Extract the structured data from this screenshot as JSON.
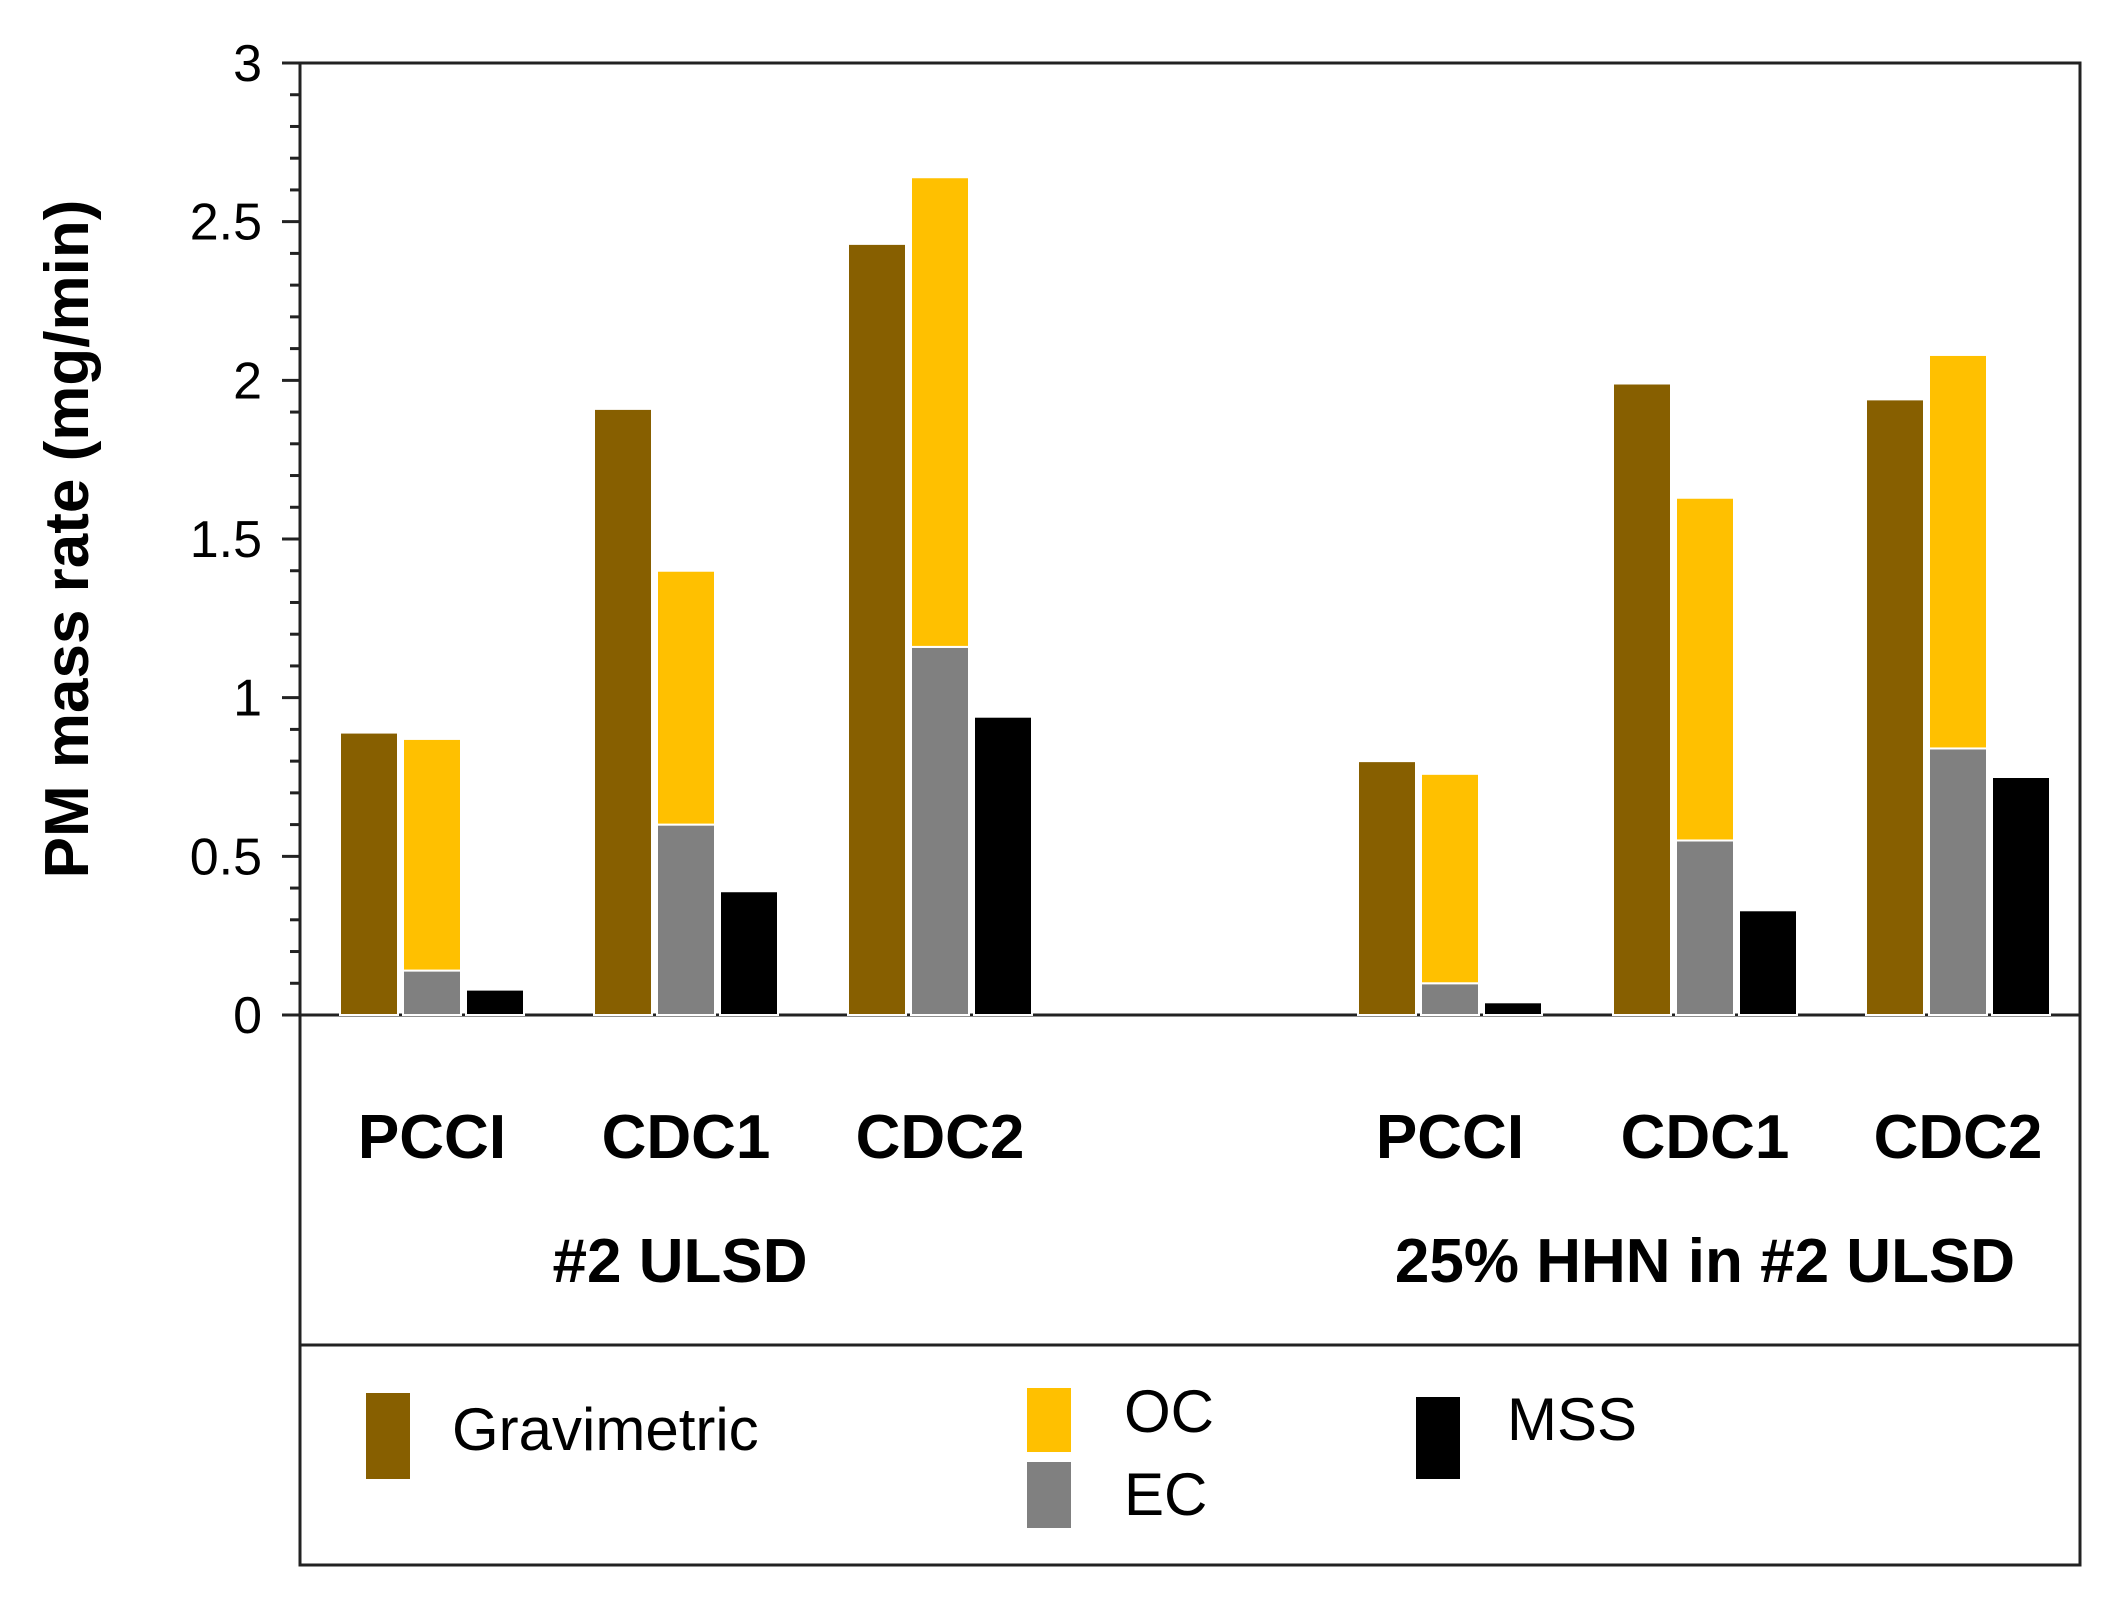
{
  "chart_data": {
    "type": "bar",
    "ylabel": "PM mass rate (mg/min)",
    "ylim": [
      0,
      3
    ],
    "yticks": [
      "0",
      "0.5",
      "1",
      "1.5",
      "2",
      "2.5",
      "3"
    ],
    "ytick_values": [
      0,
      0.5,
      1,
      1.5,
      2,
      2.5,
      3
    ],
    "groups": [
      {
        "label": "#2 ULSD",
        "categories": [
          {
            "label": "PCCI",
            "gravimetric": 0.89,
            "ec": 0.14,
            "oc": 0.73,
            "mss": 0.08
          },
          {
            "label": "CDC1",
            "gravimetric": 1.91,
            "ec": 0.6,
            "oc": 0.8,
            "mss": 0.39
          },
          {
            "label": "CDC2",
            "gravimetric": 2.43,
            "ec": 1.16,
            "oc": 1.48,
            "mss": 0.94
          }
        ]
      },
      {
        "label": "25% HHN in #2 ULSD",
        "categories": [
          {
            "label": "PCCI",
            "gravimetric": 0.8,
            "ec": 0.1,
            "oc": 0.66,
            "mss": 0.04
          },
          {
            "label": "CDC1",
            "gravimetric": 1.99,
            "ec": 0.55,
            "oc": 1.08,
            "mss": 0.33
          },
          {
            "label": "CDC2",
            "gravimetric": 1.94,
            "ec": 0.84,
            "oc": 1.24,
            "mss": 0.75
          }
        ]
      }
    ],
    "legend": {
      "gravimetric": "Gravimetric",
      "oc": "OC",
      "ec": "EC",
      "mss": "MSS"
    },
    "colors": {
      "gravimetric": "#875f00",
      "oc": "#ffc000",
      "ec": "#808080",
      "mss": "#000000"
    }
  }
}
